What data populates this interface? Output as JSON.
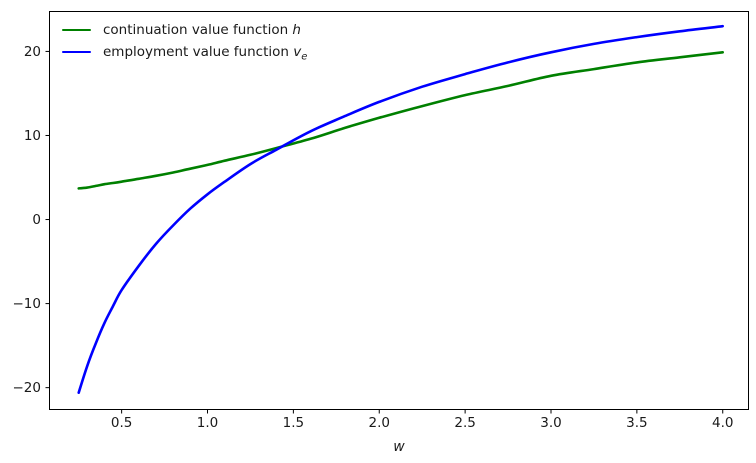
{
  "figure": {
    "background": "#ffffff",
    "text_color": "#1a1a1a"
  },
  "axes": {
    "xlabel": "w",
    "x_tick_values": [
      0.5,
      1.0,
      1.5,
      2.0,
      2.5,
      3.0,
      3.5,
      4.0
    ],
    "x_tick_labels": [
      "0.5",
      "1.0",
      "1.5",
      "2.0",
      "2.5",
      "3.0",
      "3.5",
      "4.0"
    ],
    "y_tick_values": [
      -20,
      -10,
      0,
      10,
      20
    ],
    "y_tick_labels": [
      "−20",
      "−10",
      "0",
      "10",
      "20"
    ],
    "xlim": [
      0.08,
      4.15
    ],
    "ylim": [
      -22.6,
      24.75
    ]
  },
  "legend": {
    "items": [
      {
        "text": "continuation value function ",
        "math": "h",
        "sub": "",
        "color": "#008000"
      },
      {
        "text": "employment value function ",
        "math": "v",
        "sub": "e",
        "color": "#0000ff"
      }
    ]
  },
  "chart_data": {
    "type": "line",
    "title": "",
    "xlabel": "w",
    "ylabel": "",
    "grid": false,
    "legend_position": "upper left",
    "xlim": [
      0.08,
      4.15
    ],
    "ylim": [
      -22.6,
      24.75
    ],
    "x": [
      0.25,
      0.3,
      0.35,
      0.4,
      0.45,
      0.5,
      0.6,
      0.7,
      0.8,
      0.9,
      1.0,
      1.1,
      1.25,
      1.4,
      1.6,
      1.8,
      2.0,
      2.25,
      2.5,
      2.75,
      3.0,
      3.25,
      3.5,
      3.75,
      4.0
    ],
    "series": [
      {
        "name": "continuation value function h",
        "color": "#008000",
        "values": [
          3.7,
          3.8,
          4.0,
          4.2,
          4.35,
          4.5,
          4.85,
          5.2,
          5.6,
          6.05,
          6.5,
          7.0,
          7.7,
          8.5,
          9.6,
          10.9,
          12.1,
          13.5,
          14.8,
          15.9,
          17.1,
          17.9,
          18.7,
          19.3,
          19.9
        ]
      },
      {
        "name": "employment value function v_e",
        "color": "#0000ff",
        "values": [
          -20.6,
          -17.4,
          -14.7,
          -12.3,
          -10.3,
          -8.4,
          -5.5,
          -2.9,
          -0.7,
          1.3,
          3.0,
          4.5,
          6.6,
          8.3,
          10.5,
          12.3,
          14.0,
          15.8,
          17.3,
          18.7,
          19.9,
          20.9,
          21.7,
          22.4,
          23.0
        ]
      }
    ]
  }
}
